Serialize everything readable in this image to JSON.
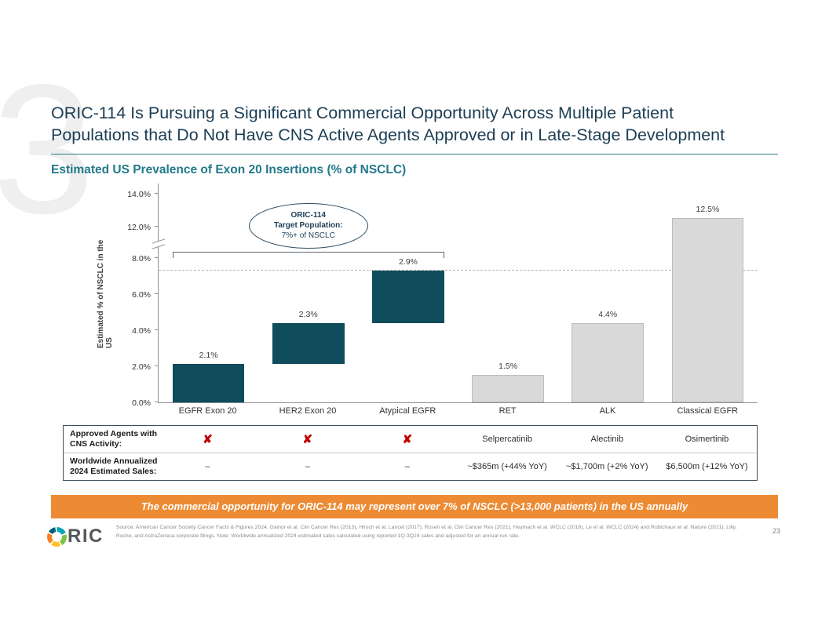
{
  "slide": {
    "title_line1": "ORIC-114 Is Pursuing a Significant Commercial Opportunity Across Multiple Patient",
    "title_line2": "Populations that Do Not Have CNS Active Agents Approved or in Late-Stage Development",
    "section_title": "Estimated US Prevalence of Exon 20 Insertions (% of NSCLC)",
    "watermark": "3"
  },
  "chart_data": {
    "type": "bar",
    "title": "Estimated US Prevalence of Exon 20 Insertions (% of NSCLC)",
    "ylabel": "Estimated % of NSCLC in the US",
    "ylim": [
      0,
      14
    ],
    "axis_break": [
      8,
      12
    ],
    "yticks": [
      0,
      2,
      4,
      6,
      8,
      12,
      14
    ],
    "ytick_labels": [
      "0.0%",
      "2.0%",
      "4.0%",
      "6.0%",
      "8.0%",
      "12.0%",
      "14.0%"
    ],
    "grid": false,
    "stacking": "first three bars are cumulative (waterfall) totaling 7.3%",
    "dashed_reference_line": 7.3,
    "categories": [
      "EGFR Exon 20",
      "HER2 Exon 20",
      "Atypical EGFR",
      "RET",
      "ALK",
      "Classical EGFR"
    ],
    "bars": [
      {
        "category": "EGFR Exon 20",
        "value": 2.1,
        "label": "2.1%",
        "start": 0,
        "end": 2.1,
        "group": "target"
      },
      {
        "category": "HER2 Exon 20",
        "value": 2.3,
        "label": "2.3%",
        "start": 2.1,
        "end": 4.4,
        "group": "target"
      },
      {
        "category": "Atypical EGFR",
        "value": 2.9,
        "label": "2.9%",
        "start": 4.4,
        "end": 7.3,
        "group": "target"
      },
      {
        "category": "RET",
        "value": 1.5,
        "label": "1.5%",
        "start": 0,
        "end": 1.5,
        "group": "comparator"
      },
      {
        "category": "ALK",
        "value": 4.4,
        "label": "4.4%",
        "start": 0,
        "end": 4.4,
        "group": "comparator"
      },
      {
        "category": "Classical EGFR",
        "value": 12.5,
        "label": "12.5%",
        "start": 0,
        "end": 12.5,
        "group": "comparator"
      }
    ],
    "annotation": {
      "line1": "ORIC-114",
      "line2": "Target Population:",
      "line3": "7%+ of NSCLC"
    },
    "colors": {
      "target_bar": "#0F4D5C",
      "comparator_bar": "#D9D9D9",
      "x_mark": "#C00000",
      "banner": "#EC8B33"
    }
  },
  "table": {
    "rows": [
      {
        "label": "Approved Agents with CNS Activity:",
        "cells": [
          {
            "type": "x"
          },
          {
            "type": "x"
          },
          {
            "type": "x"
          },
          {
            "type": "text",
            "value": "Selpercatinib"
          },
          {
            "type": "text",
            "value": "Alectinib"
          },
          {
            "type": "text",
            "value": "Osimertinib"
          }
        ]
      },
      {
        "label": "Worldwide Annualized 2024 Estimated Sales:",
        "cells": [
          {
            "type": "text",
            "value": "–"
          },
          {
            "type": "text",
            "value": "–"
          },
          {
            "type": "text",
            "value": "–"
          },
          {
            "type": "text",
            "value": "~$365m (+44% YoY)"
          },
          {
            "type": "text",
            "value": "~$1,700m (+2% YoY)"
          },
          {
            "type": "text",
            "value": "$6,500m (+12% YoY)"
          }
        ]
      }
    ]
  },
  "banner": {
    "text": "The commercial opportunity for ORIC-114 may represent over 7% of NSCLC (>13,000 patients) in the US annually"
  },
  "footer": {
    "logo_text": "RIC",
    "source_text": "Source:  American Cancer Society Cancer Facts & Figures 2024, Gainor et al. Clin Cancer Res (2013), Hirsch et al. Lancet (2017), Rosen et al. Clin Cancer Res (2021), Heymach et al. WCLC (2018), Le et al. WCLC (2024) and Robichaux et al. Nature (2021).  Lilly, Roche, and AstraZeneca corporate filings.  Note:  Worldwide annualized 2024 estimated sales calculated using reported 1Q-3Q24 sales and adjusted for an annual run rate.",
    "page_number": "23"
  }
}
